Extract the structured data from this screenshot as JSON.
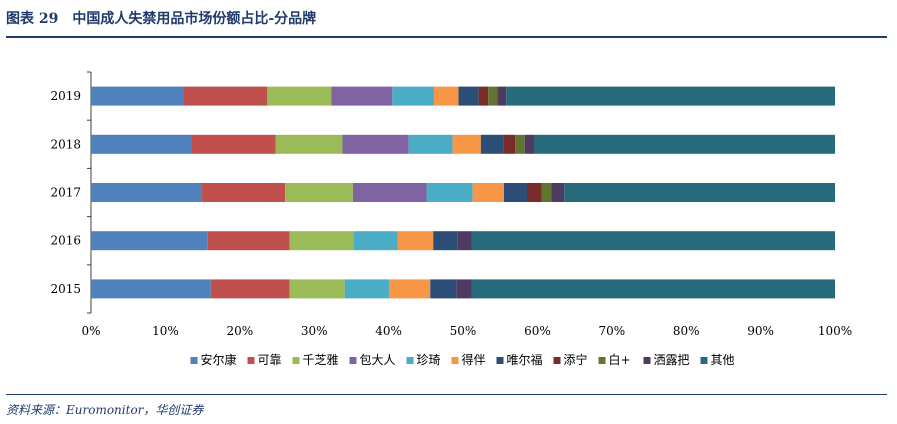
{
  "header": {
    "title": "图表 29　中国成人失禁用品市场份额占比-分品牌"
  },
  "footer": {
    "source": "资料来源：Euromonitor，华创证券"
  },
  "chart_data": {
    "type": "bar",
    "orientation": "horizontal",
    "stacked": true,
    "categories": [
      "2019",
      "2018",
      "2017",
      "2016",
      "2015"
    ],
    "xlim": [
      0,
      100
    ],
    "xticks": [
      "0%",
      "10%",
      "20%",
      "30%",
      "40%",
      "50%",
      "60%",
      "70%",
      "80%",
      "90%",
      "100%"
    ],
    "legend_position": "bottom",
    "series": [
      {
        "name": "安尔康",
        "color": "#4f81bd",
        "values": [
          12.5,
          13.5,
          14.8,
          15.7,
          16.1
        ]
      },
      {
        "name": "可靠",
        "color": "#c0504d",
        "values": [
          11.2,
          11.3,
          11.3,
          11.0,
          10.6
        ]
      },
      {
        "name": "千芝雅",
        "color": "#9bbb59",
        "values": [
          8.6,
          9.0,
          9.1,
          8.6,
          7.4
        ]
      },
      {
        "name": "包大人",
        "color": "#8064a2",
        "values": [
          8.2,
          8.9,
          9.9,
          0,
          0
        ]
      },
      {
        "name": "珍琦",
        "color": "#4bacc6",
        "values": [
          5.6,
          5.9,
          6.2,
          5.9,
          6.0
        ]
      },
      {
        "name": "得伴",
        "color": "#f79646",
        "values": [
          3.3,
          3.8,
          4.2,
          4.8,
          5.5
        ]
      },
      {
        "name": "唯尔福",
        "color": "#2c4d75",
        "values": [
          2.7,
          3.0,
          3.1,
          3.3,
          3.5
        ]
      },
      {
        "name": "添宁",
        "color": "#772c2a",
        "values": [
          1.3,
          1.6,
          2.0,
          0,
          0
        ]
      },
      {
        "name": "白+",
        "color": "#5f7530",
        "values": [
          1.2,
          1.3,
          1.3,
          0,
          0
        ]
      },
      {
        "name": "洒露把",
        "color": "#4d3b62",
        "values": [
          1.2,
          1.3,
          1.7,
          1.9,
          2.1
        ]
      },
      {
        "name": "其他",
        "color": "#276a7c",
        "values": [
          44.2,
          40.4,
          36.4,
          48.8,
          48.8
        ]
      }
    ]
  }
}
